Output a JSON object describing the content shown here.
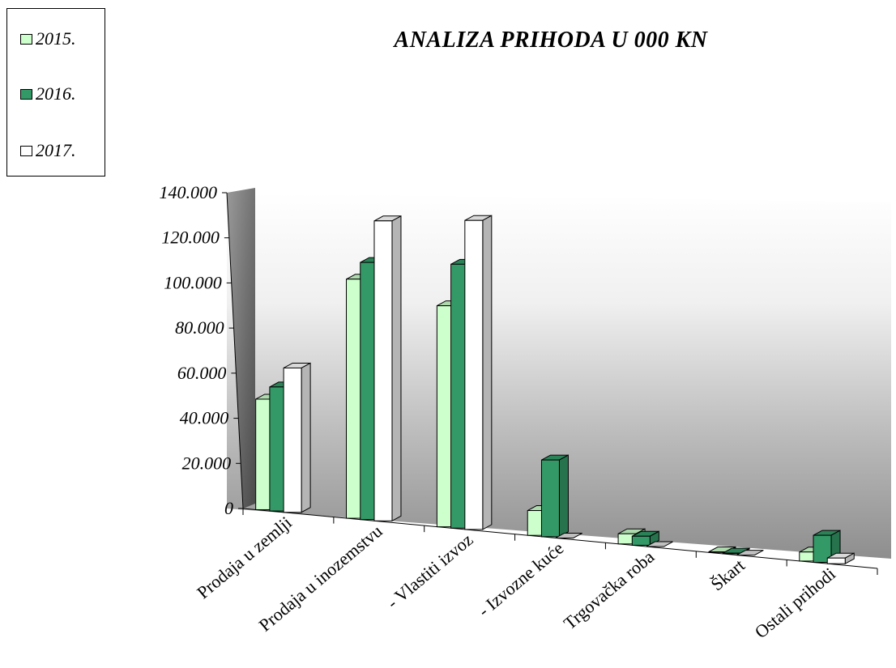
{
  "chart_data": {
    "type": "bar",
    "title": "ANALIZA PRIHODA U 000 KN",
    "xlabel": "",
    "ylabel": "",
    "ylim": [
      0,
      140000
    ],
    "yticks": [
      "0",
      "20.000",
      "40.000",
      "60.000",
      "80.000",
      "100.000",
      "120.000",
      "140.000"
    ],
    "categories": [
      "Prodaja u zemlji",
      "Prodaja u inozemstvu",
      "- Vlastiti izvoz",
      "- Izvozne kuće",
      "Trgovačka roba",
      "Škart",
      "Ostali prihodi"
    ],
    "series": [
      {
        "name": "2015.",
        "color": "#ccffcc",
        "values": [
          49000,
          106000,
          98000,
          11000,
          4500,
          300,
          4000
        ]
      },
      {
        "name": "2016.",
        "color": "#339966",
        "values": [
          55000,
          114000,
          117000,
          34000,
          4000,
          300,
          12000
        ]
      },
      {
        "name": "2017.",
        "color": "#ffffff",
        "values": [
          64000,
          133000,
          137000,
          0,
          0,
          0,
          2500
        ]
      }
    ],
    "legend_position": "top-left",
    "grid": false,
    "three_d": true
  }
}
